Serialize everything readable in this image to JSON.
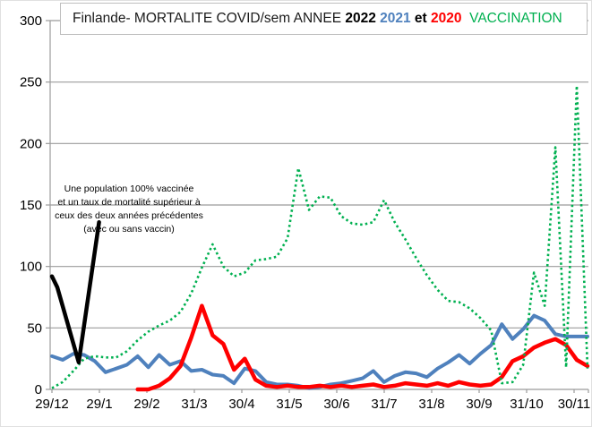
{
  "title": {
    "segments": [
      {
        "text": "Finlande- MORTALITE COVID/sem ANNEE ",
        "color": "#1a1a1a",
        "bold": false
      },
      {
        "text": "2022",
        "color": "#000000",
        "bold": true
      },
      {
        "text": " ",
        "color": "#000000",
        "bold": false
      },
      {
        "text": "2021",
        "color": "#4f81bd",
        "bold": true
      },
      {
        "text": " et ",
        "color": "#000000",
        "bold": true
      },
      {
        "text": "2020",
        "color": "#ff0000",
        "bold": true
      },
      {
        "text": "  VACCINATION",
        "color": "#00b050",
        "bold": false
      }
    ],
    "full_text": "Finlande- MORTALITE COVID/sem ANNEE 2022 2021 et 2020  VACCINATION"
  },
  "annotation": {
    "lines": [
      "Une population 100% vaccinée",
      "et un taux de mortalité supérieur à",
      "ceux des deux années précédentes",
      "(avec ou sans vaccin)"
    ]
  },
  "colors": {
    "blue_2021": "#4f81bd",
    "red_2020": "#ff0000",
    "green_vaccination": "#00b050",
    "black_2022": "#000000",
    "grid": "#9b9b9b",
    "axis_text": "#000000"
  },
  "chart_data": {
    "type": "line",
    "title": "Finlande- MORTALITE COVID/sem ANNEE 2022 2021 et 2020 VACCINATION",
    "xlabel": "",
    "ylabel": "",
    "grid": true,
    "legend_position": "in-title",
    "x_axis": {
      "unit": "semaine (date de fin de mois)",
      "tick_labels": [
        "29/12",
        "29/1",
        "29/2",
        "31/3",
        "30/4",
        "31/5",
        "30/6",
        "31/7",
        "31/8",
        "30/9",
        "31/10",
        "30/11"
      ]
    },
    "y_axis": {
      "min": 0,
      "max": 300,
      "step": 50,
      "tick_labels": [
        "0",
        "50",
        "100",
        "150",
        "200",
        "250",
        "300"
      ]
    },
    "annotation": "Une population 100% vaccinée et un taux de mortalité supérieur à ceux des deux années précédentes (avec ou sans vaccin)",
    "series": [
      {
        "name": "2021",
        "color": "#4f81bd",
        "style": "solid",
        "width": 4,
        "points": [
          [
            0,
            27
          ],
          [
            1,
            24
          ],
          [
            2,
            29
          ],
          [
            3,
            28
          ],
          [
            4,
            23
          ],
          [
            5,
            14
          ],
          [
            6,
            17
          ],
          [
            7,
            20
          ],
          [
            8,
            27
          ],
          [
            9,
            18
          ],
          [
            10,
            28
          ],
          [
            11,
            20
          ],
          [
            12,
            23
          ],
          [
            13,
            15
          ],
          [
            14,
            16
          ],
          [
            15,
            12
          ],
          [
            16,
            11
          ],
          [
            17,
            5
          ],
          [
            18,
            17
          ],
          [
            19,
            15
          ],
          [
            20,
            6
          ],
          [
            21,
            4
          ],
          [
            22,
            4
          ],
          [
            23,
            3
          ],
          [
            24,
            1
          ],
          [
            25,
            2
          ],
          [
            26,
            4
          ],
          [
            27,
            5
          ],
          [
            28,
            7
          ],
          [
            29,
            9
          ],
          [
            30,
            15
          ],
          [
            31,
            6
          ],
          [
            32,
            11
          ],
          [
            33,
            14
          ],
          [
            34,
            13
          ],
          [
            35,
            10
          ],
          [
            36,
            17
          ],
          [
            37,
            22
          ],
          [
            38,
            28
          ],
          [
            39,
            21
          ],
          [
            40,
            29
          ],
          [
            41,
            36
          ],
          [
            42,
            53
          ],
          [
            43,
            41
          ],
          [
            44,
            49
          ],
          [
            45,
            60
          ],
          [
            46,
            56
          ],
          [
            47,
            45
          ],
          [
            48,
            43
          ],
          [
            49,
            43
          ],
          [
            50,
            43
          ]
        ]
      },
      {
        "name": "2020",
        "color": "#ff0000",
        "style": "solid",
        "width": 4.5,
        "points": [
          [
            8,
            0
          ],
          [
            9,
            0
          ],
          [
            10,
            3
          ],
          [
            11,
            9
          ],
          [
            12,
            19
          ],
          [
            13,
            42
          ],
          [
            14,
            68
          ],
          [
            15,
            44
          ],
          [
            16,
            37
          ],
          [
            17,
            16
          ],
          [
            18,
            25
          ],
          [
            19,
            8
          ],
          [
            20,
            3
          ],
          [
            21,
            2
          ],
          [
            22,
            3
          ],
          [
            23,
            2
          ],
          [
            24,
            2
          ],
          [
            25,
            3
          ],
          [
            26,
            2
          ],
          [
            27,
            3
          ],
          [
            28,
            2
          ],
          [
            29,
            3
          ],
          [
            30,
            4
          ],
          [
            31,
            2
          ],
          [
            32,
            3
          ],
          [
            33,
            5
          ],
          [
            34,
            4
          ],
          [
            35,
            3
          ],
          [
            36,
            5
          ],
          [
            37,
            3
          ],
          [
            38,
            6
          ],
          [
            39,
            4
          ],
          [
            40,
            3
          ],
          [
            41,
            4
          ],
          [
            42,
            10
          ],
          [
            43,
            23
          ],
          [
            44,
            27
          ],
          [
            45,
            34
          ],
          [
            46,
            38
          ],
          [
            47,
            41
          ],
          [
            48,
            36
          ],
          [
            49,
            24
          ],
          [
            50,
            19
          ]
        ]
      },
      {
        "name": "VACCINATION",
        "color": "#00b050",
        "style": "dotted",
        "width": 2.6,
        "points": [
          [
            0,
            1
          ],
          [
            1,
            6
          ],
          [
            2,
            15
          ],
          [
            3,
            25
          ],
          [
            4,
            27
          ],
          [
            5,
            26
          ],
          [
            6,
            26
          ],
          [
            7,
            31
          ],
          [
            8,
            40
          ],
          [
            9,
            47
          ],
          [
            10,
            52
          ],
          [
            11,
            56
          ],
          [
            12,
            63
          ],
          [
            13,
            78
          ],
          [
            14,
            99
          ],
          [
            15,
            118
          ],
          [
            16,
            100
          ],
          [
            17,
            92
          ],
          [
            18,
            95
          ],
          [
            19,
            105
          ],
          [
            20,
            106
          ],
          [
            21,
            108
          ],
          [
            22,
            123
          ],
          [
            23,
            180
          ],
          [
            24,
            146
          ],
          [
            25,
            157
          ],
          [
            26,
            156
          ],
          [
            27,
            141
          ],
          [
            28,
            135
          ],
          [
            29,
            134
          ],
          [
            30,
            136
          ],
          [
            31,
            154
          ],
          [
            32,
            136
          ],
          [
            33,
            122
          ],
          [
            34,
            107
          ],
          [
            35,
            93
          ],
          [
            36,
            81
          ],
          [
            37,
            72
          ],
          [
            38,
            71
          ],
          [
            39,
            66
          ],
          [
            40,
            58
          ],
          [
            41,
            48
          ],
          [
            42,
            5
          ],
          [
            43,
            6
          ],
          [
            44,
            20
          ],
          [
            45,
            95
          ],
          [
            46,
            68
          ],
          [
            47,
            197
          ],
          [
            48,
            18
          ],
          [
            49,
            247
          ],
          [
            50,
            17
          ]
        ]
      },
      {
        "name": "2022",
        "color": "#000000",
        "style": "solid",
        "width": 4.5,
        "points": [
          [
            0,
            92
          ],
          [
            0.5,
            83
          ],
          [
            2.5,
            22
          ],
          [
            4.4,
            136
          ]
        ]
      }
    ]
  }
}
